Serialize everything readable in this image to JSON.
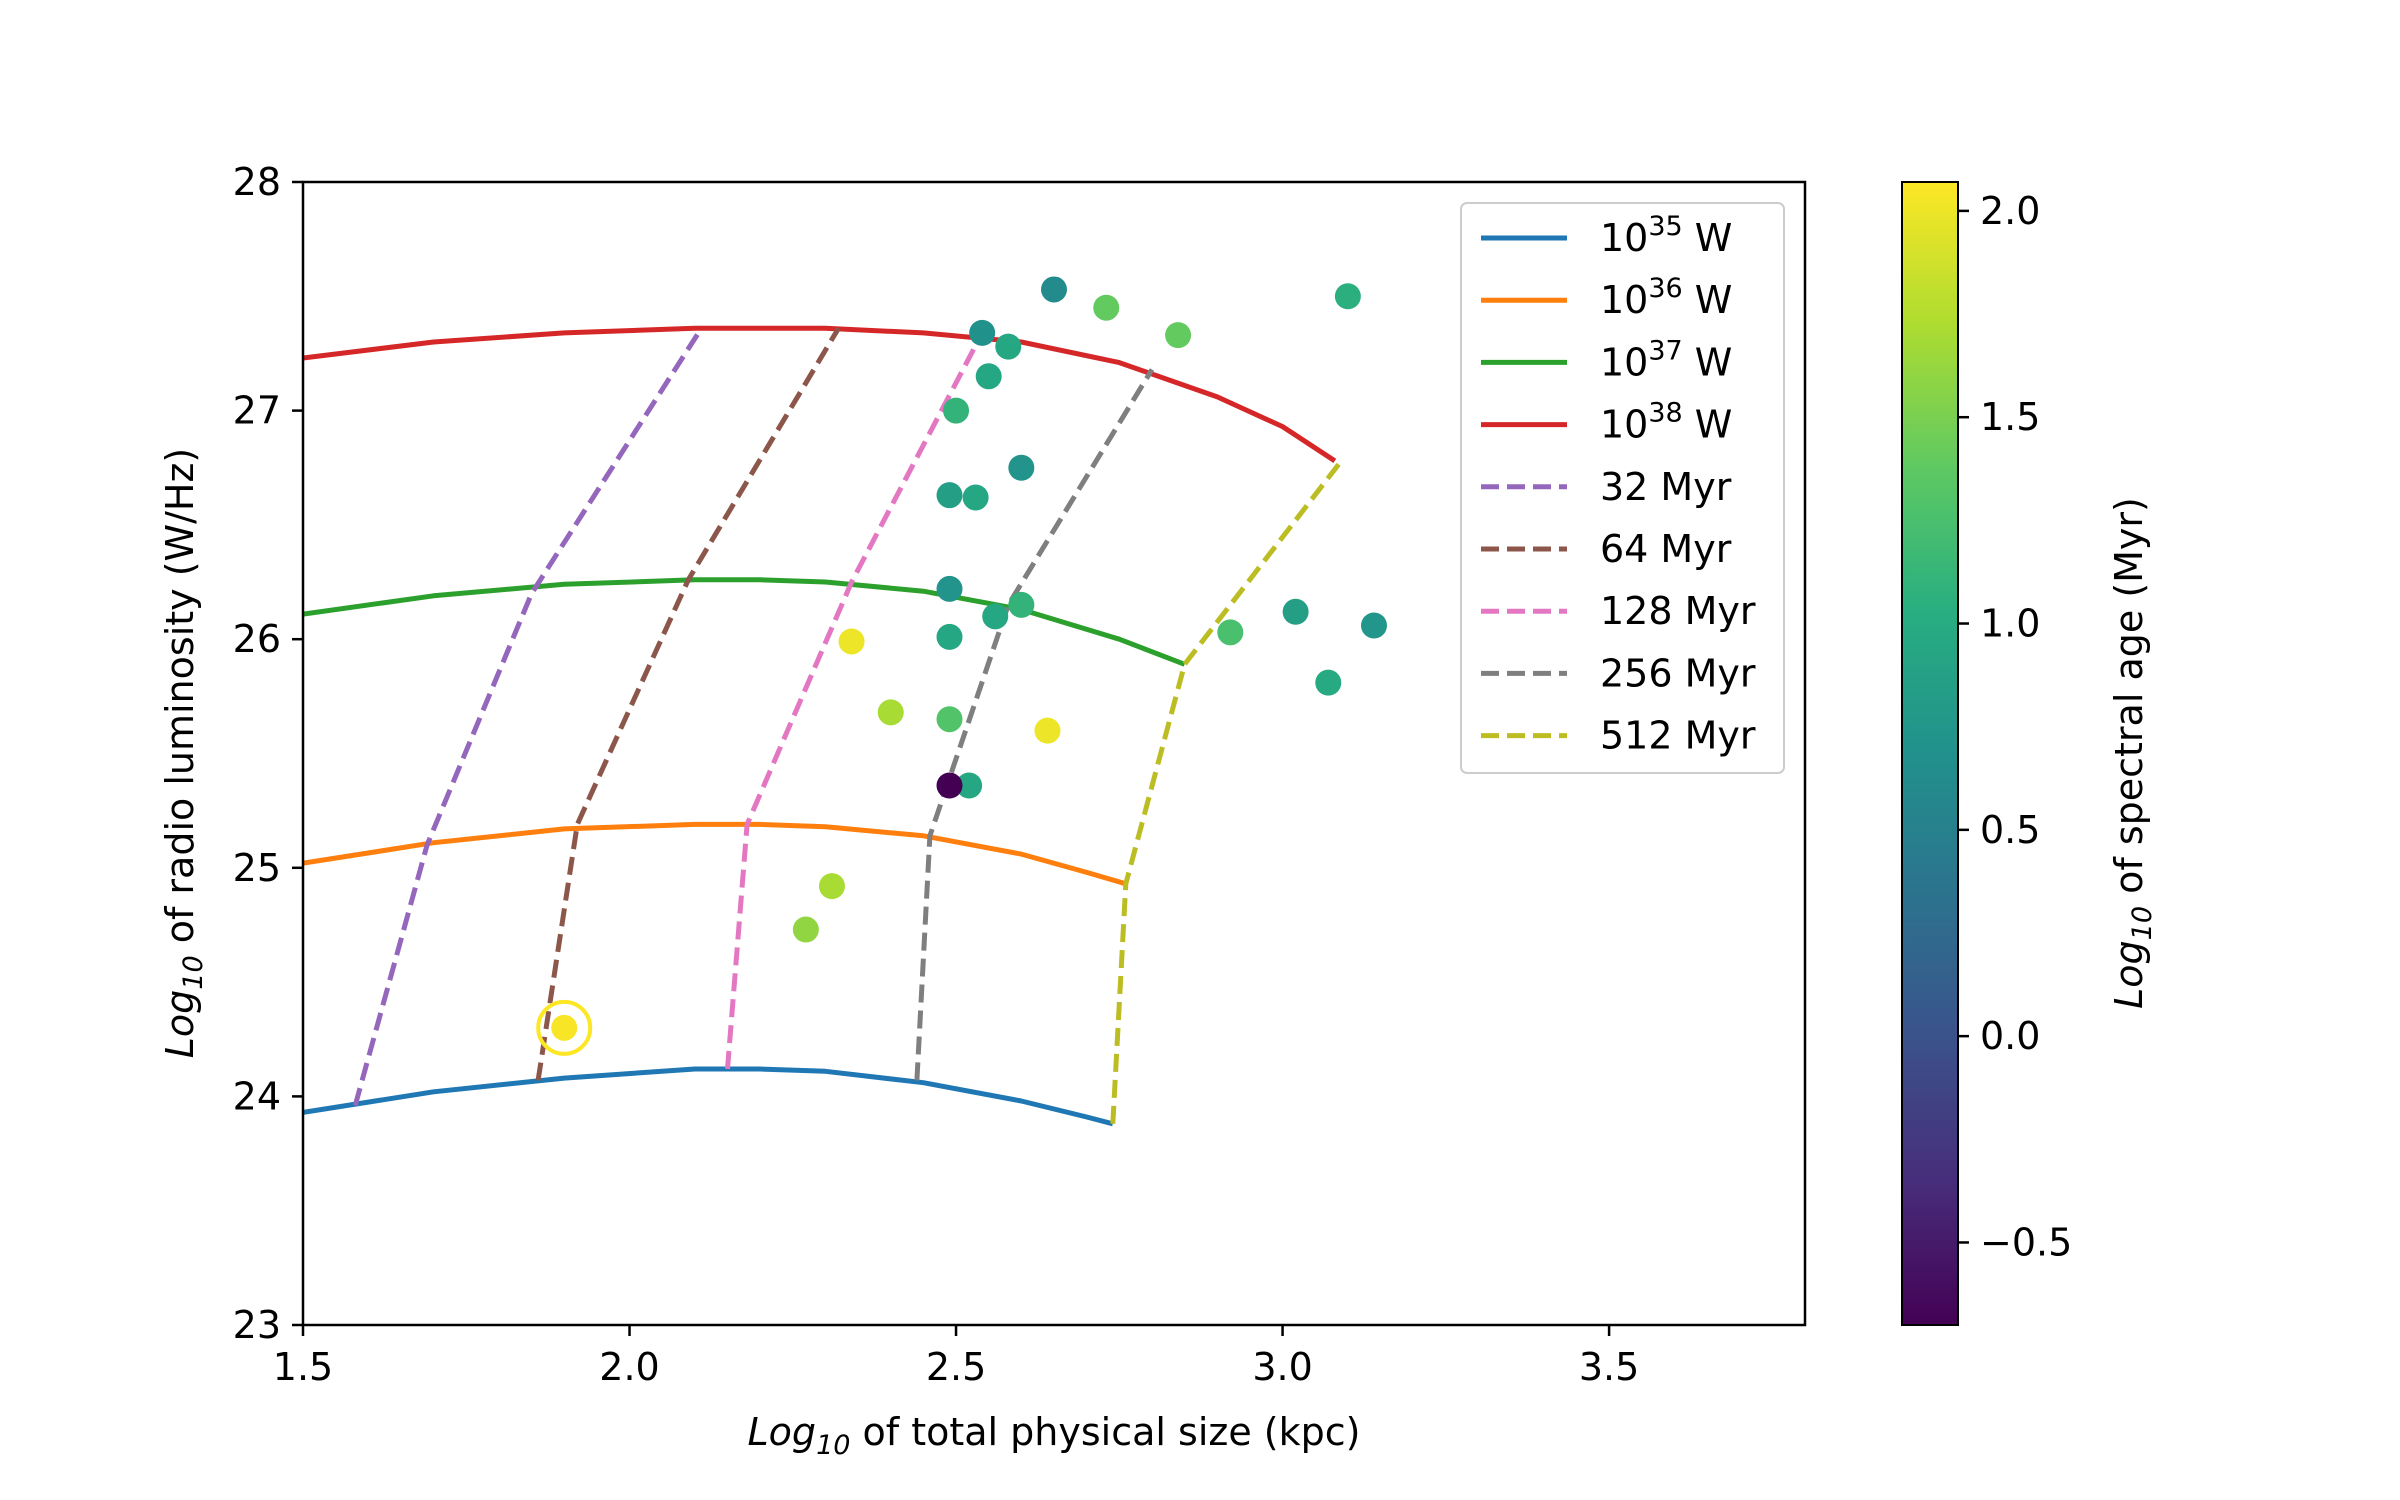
{
  "chart_data": {
    "type": "scatter",
    "xlabel": {
      "prefix": "Log",
      "sub": "10",
      "suffix": " of total physical size (kpc)"
    },
    "ylabel": {
      "prefix": "Log",
      "sub": "10",
      "suffix": " of radio luminosity (W/Hz)"
    },
    "xlim": [
      1.5,
      3.8
    ],
    "ylim": [
      23,
      28
    ],
    "xticks": [
      1.5,
      2.0,
      2.5,
      3.0,
      3.5
    ],
    "xtick_labels": [
      "1.5",
      "2.0",
      "2.5",
      "3.0",
      "3.5"
    ],
    "yticks": [
      23,
      24,
      25,
      26,
      27,
      28
    ],
    "ytick_labels": [
      "23",
      "24",
      "25",
      "26",
      "27",
      "28"
    ],
    "colorbar": {
      "label": {
        "prefix": "Log",
        "sub": "10",
        "suffix": " of spectral age (Myr)"
      },
      "vmin": -0.7,
      "vmax": 2.07,
      "ticks": [
        -0.5,
        0.0,
        0.5,
        1.0,
        1.5,
        2.0
      ],
      "tick_labels": [
        "−0.5",
        "0.0",
        "0.5",
        "1.0",
        "1.5",
        "2.0"
      ],
      "colormap": "viridis"
    },
    "series": [
      {
        "name": "10^35 W",
        "label_base": "10",
        "label_exp": "35",
        "label_unit": " W",
        "style": "solid",
        "color": "#1f77b4",
        "x": [
          1.5,
          1.7,
          1.9,
          2.1,
          2.2,
          2.3,
          2.45,
          2.6,
          2.7,
          2.74
        ],
        "y": [
          23.93,
          24.02,
          24.08,
          24.12,
          24.12,
          24.11,
          24.06,
          23.98,
          23.91,
          23.88
        ]
      },
      {
        "name": "10^36 W",
        "label_base": "10",
        "label_exp": "36",
        "label_unit": " W",
        "style": "solid",
        "color": "#ff7f0e",
        "x": [
          1.5,
          1.7,
          1.9,
          2.1,
          2.2,
          2.3,
          2.45,
          2.6,
          2.7,
          2.76
        ],
        "y": [
          25.02,
          25.11,
          25.17,
          25.19,
          25.19,
          25.18,
          25.14,
          25.06,
          24.98,
          24.93
        ]
      },
      {
        "name": "10^37 W",
        "label_base": "10",
        "label_exp": "37",
        "label_unit": " W",
        "style": "solid",
        "color": "#2ca02c",
        "x": [
          1.5,
          1.7,
          1.9,
          2.1,
          2.2,
          2.3,
          2.45,
          2.6,
          2.75,
          2.85
        ],
        "y": [
          26.11,
          26.19,
          26.24,
          26.26,
          26.26,
          26.25,
          26.21,
          26.13,
          26.0,
          25.89
        ]
      },
      {
        "name": "10^38 W",
        "label_base": "10",
        "label_exp": "38",
        "label_unit": " W",
        "style": "solid",
        "color": "#d62728",
        "x": [
          1.5,
          1.7,
          1.9,
          2.1,
          2.2,
          2.3,
          2.45,
          2.6,
          2.75,
          2.9,
          3.0,
          3.08
        ],
        "y": [
          27.23,
          27.3,
          27.34,
          27.36,
          27.36,
          27.36,
          27.34,
          27.3,
          27.21,
          27.06,
          26.93,
          26.78
        ]
      },
      {
        "name": "32 Myr",
        "label_base": "32 Myr",
        "label_exp": "",
        "label_unit": "",
        "style": "dashed",
        "color": "#9467bd",
        "x": [
          1.58,
          1.69,
          1.85,
          2.11
        ],
        "y": [
          23.96,
          25.1,
          26.2,
          27.36
        ]
      },
      {
        "name": "64 Myr",
        "label_base": "64 Myr",
        "label_exp": "",
        "label_unit": "",
        "style": "dashed",
        "color": "#8c564b",
        "x": [
          1.86,
          1.92,
          2.09,
          2.32
        ],
        "y": [
          24.07,
          25.19,
          26.26,
          27.36
        ]
      },
      {
        "name": "128 Myr",
        "label_base": "128 Myr",
        "label_exp": "",
        "label_unit": "",
        "style": "dashed",
        "color": "#e377c2",
        "x": [
          2.15,
          2.18,
          2.34,
          2.54
        ],
        "y": [
          24.12,
          25.19,
          26.25,
          27.34
        ]
      },
      {
        "name": "256 Myr",
        "label_base": "256 Myr",
        "label_exp": "",
        "label_unit": "",
        "style": "dashed",
        "color": "#7f7f7f",
        "x": [
          2.44,
          2.46,
          2.58,
          2.8
        ],
        "y": [
          24.07,
          25.14,
          26.15,
          27.18
        ]
      },
      {
        "name": "512 Myr",
        "label_base": "512 Myr",
        "label_exp": "",
        "label_unit": "",
        "style": "dashed",
        "color": "#bcbd22",
        "x": [
          2.74,
          2.76,
          2.85,
          3.09
        ],
        "y": [
          23.88,
          24.93,
          25.89,
          26.78
        ]
      }
    ],
    "points": [
      {
        "x": 2.65,
        "y": 27.53,
        "c": 0.62
      },
      {
        "x": 2.73,
        "y": 27.45,
        "c": 1.4
      },
      {
        "x": 2.84,
        "y": 27.33,
        "c": 1.4
      },
      {
        "x": 3.1,
        "y": 27.5,
        "c": 1.05
      },
      {
        "x": 2.54,
        "y": 27.34,
        "c": 0.7
      },
      {
        "x": 2.58,
        "y": 27.28,
        "c": 0.95
      },
      {
        "x": 2.55,
        "y": 27.15,
        "c": 0.95
      },
      {
        "x": 2.5,
        "y": 27.0,
        "c": 1.1
      },
      {
        "x": 2.6,
        "y": 26.75,
        "c": 0.72
      },
      {
        "x": 2.49,
        "y": 26.63,
        "c": 0.85
      },
      {
        "x": 2.53,
        "y": 26.62,
        "c": 0.95
      },
      {
        "x": 2.49,
        "y": 26.22,
        "c": 0.72
      },
      {
        "x": 2.6,
        "y": 26.15,
        "c": 1.1
      },
      {
        "x": 2.56,
        "y": 26.1,
        "c": 0.95
      },
      {
        "x": 2.49,
        "y": 26.01,
        "c": 0.95
      },
      {
        "x": 2.92,
        "y": 26.03,
        "c": 1.25
      },
      {
        "x": 3.02,
        "y": 26.12,
        "c": 0.85
      },
      {
        "x": 3.14,
        "y": 26.06,
        "c": 0.75
      },
      {
        "x": 3.07,
        "y": 25.81,
        "c": 0.98
      },
      {
        "x": 2.34,
        "y": 25.99,
        "c": 2.0
      },
      {
        "x": 2.4,
        "y": 25.68,
        "c": 1.7
      },
      {
        "x": 2.49,
        "y": 25.65,
        "c": 1.3
      },
      {
        "x": 2.64,
        "y": 25.6,
        "c": 2.0
      },
      {
        "x": 2.52,
        "y": 25.36,
        "c": 0.95
      },
      {
        "x": 2.49,
        "y": 25.36,
        "c": -0.7
      },
      {
        "x": 2.31,
        "y": 24.92,
        "c": 1.7
      },
      {
        "x": 2.27,
        "y": 24.73,
        "c": 1.6
      },
      {
        "x": 1.9,
        "y": 24.3,
        "c": 2.05,
        "highlight": true
      }
    ],
    "highlight_ring_color": "#fde725"
  }
}
